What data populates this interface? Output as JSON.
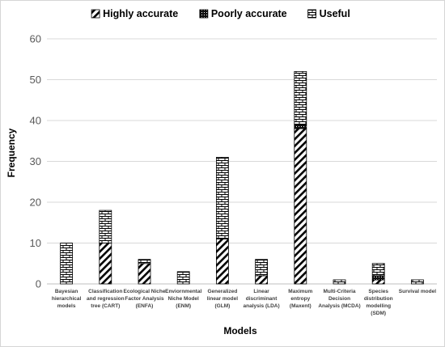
{
  "chart_data": {
    "type": "bar",
    "stacked": true,
    "title": "",
    "xlabel": "Models",
    "ylabel": "Frequency",
    "ylim": [
      0,
      60
    ],
    "yticks": [
      0,
      10,
      20,
      30,
      40,
      50,
      60
    ],
    "grid": true,
    "legend_position": "top",
    "categories": [
      [
        "Bayesian",
        "hierarchical",
        "models"
      ],
      [
        "Classification",
        "and regression",
        "tree (CART)"
      ],
      [
        "Ecological Niche",
        "Factor Analysis",
        "(ENFA)"
      ],
      [
        "Enviornmental",
        "Niche Model",
        "(ENM)"
      ],
      [
        "Generalized",
        "linear model",
        "(GLM)"
      ],
      [
        "Linear",
        "discriminant",
        "analysis (LDA)"
      ],
      [
        "Maximum",
        "entropy",
        "(Maxent)"
      ],
      [
        "Multi-Criteria",
        "Decision",
        "Analysis (MCDA)"
      ],
      [
        "Species",
        "distribution",
        "modelling",
        "(SDM)"
      ],
      [
        "Survival model"
      ]
    ],
    "series": [
      {
        "name": "Highly accurate",
        "pattern": "diagonal",
        "values": [
          0,
          10,
          5,
          0,
          11,
          2,
          38,
          0,
          1,
          0
        ]
      },
      {
        "name": "Poorly accurate",
        "pattern": "solid-dark",
        "values": [
          0,
          0,
          0,
          0,
          0,
          0,
          1,
          0,
          1,
          0
        ]
      },
      {
        "name": "Useful",
        "pattern": "brick",
        "values": [
          10,
          8,
          1,
          3,
          20,
          4,
          13,
          1,
          3,
          1
        ]
      }
    ],
    "colors": {
      "ink": "#000000",
      "grid": "#d9d9d9",
      "axis": "#bfbfbf"
    }
  }
}
